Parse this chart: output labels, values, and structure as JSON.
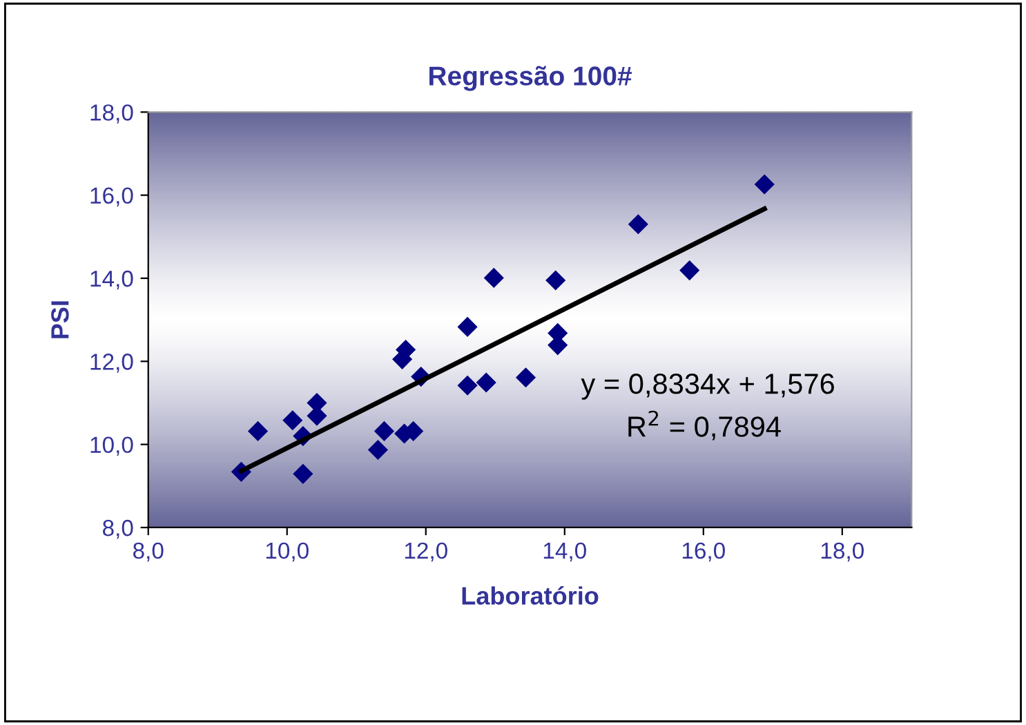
{
  "chart_data": {
    "type": "scatter",
    "title": "Regressão 100#",
    "xlabel": "Laboratório",
    "ylabel": "PSI",
    "series": [
      {
        "color": "#000080",
        "marker": "diamond",
        "x": [
          9.34,
          9.58,
          10.08,
          10.23,
          10.23,
          10.43,
          10.43,
          11.31,
          11.4,
          11.69,
          11.82,
          11.66,
          11.71,
          11.93,
          12.6,
          12.6,
          12.87,
          12.98,
          13.44,
          13.87,
          13.9,
          13.9,
          15.06,
          15.8,
          16.88
        ],
        "values": [
          9.34,
          10.32,
          10.58,
          10.2,
          9.29,
          11.0,
          10.69,
          9.87,
          10.32,
          10.26,
          10.32,
          12.05,
          12.28,
          11.63,
          12.83,
          11.42,
          11.49,
          14.01,
          11.61,
          13.95,
          12.68,
          12.39,
          15.3,
          14.19,
          16.26
        ]
      },
      {
        "type": "line",
        "color": "#000000",
        "marker": "none",
        "line_style": "solid",
        "x": [
          9.34,
          16.88
        ],
        "values": [
          9.36,
          15.67
        ]
      }
    ],
    "xlim": [
      8,
      19
    ],
    "ylim": [
      8,
      18
    ],
    "xticks": [
      {
        "value": 8,
        "label": "8,0"
      },
      {
        "value": 10,
        "label": "10,0"
      },
      {
        "value": 12,
        "label": "12,0"
      },
      {
        "value": 14,
        "label": "14,0"
      },
      {
        "value": 16,
        "label": "16,0"
      },
      {
        "value": 18,
        "label": "18,0"
      }
    ],
    "yticks": [
      {
        "value": 8,
        "label": "8,0"
      },
      {
        "value": 10,
        "label": "10,0"
      },
      {
        "value": 12,
        "label": "12,0"
      },
      {
        "value": 14,
        "label": "14,0"
      },
      {
        "value": 16,
        "label": "16,0"
      },
      {
        "value": 18,
        "label": "18,0"
      }
    ],
    "annotations": [
      "y = 0,8334x + 1,576",
      "R$^{2}$ = 0,7894"
    ],
    "grid": false,
    "legend": false
  }
}
